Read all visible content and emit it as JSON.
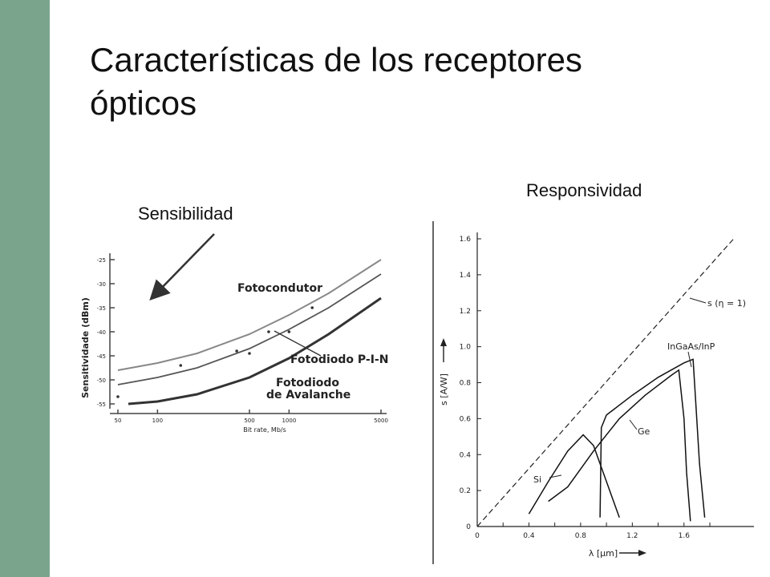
{
  "slide": {
    "title": "Características de los receptores\nópticos",
    "sensitivity_label": "Sensibilidad",
    "responsivity_label": "Responsividad",
    "colors": {
      "sidebar": "#7aa58c",
      "title": "#111111"
    }
  },
  "chart_data": [
    {
      "type": "line",
      "xscale": "log",
      "xlabel": "Bit rate, Mb/s",
      "ylabel": "Sensitividade (dBm)",
      "xlim": [
        50,
        5000
      ],
      "ylim": [
        -55,
        -25
      ],
      "x_ticks": [
        50,
        100,
        500,
        1000,
        5000
      ],
      "y_ticks": [
        -25,
        -30,
        -35,
        -40,
        -45,
        -50,
        -55
      ],
      "series": [
        {
          "name": "Fotocondutor",
          "x": [
            50,
            100,
            200,
            500,
            1000,
            2000,
            5000
          ],
          "y": [
            -48,
            -46.5,
            -44.5,
            -40.5,
            -36.5,
            -32,
            -25
          ]
        },
        {
          "name": "Fotodiodo P-I-N",
          "x": [
            50,
            100,
            200,
            500,
            1000,
            2000,
            5000
          ],
          "y": [
            -51,
            -49.5,
            -47.5,
            -43.5,
            -39.5,
            -35,
            -28
          ]
        },
        {
          "name": "Fotodiodo de Avalanche",
          "x": [
            60,
            100,
            200,
            500,
            1000,
            2000,
            5000
          ],
          "y": [
            -55,
            -54.5,
            -53,
            -49.5,
            -45.5,
            -40.5,
            -33
          ]
        }
      ],
      "points": {
        "x": [
          50,
          150,
          400,
          500,
          700,
          1000,
          1500
        ],
        "y": [
          -53.5,
          -47,
          -44,
          -44.5,
          -40,
          -40,
          -35
        ]
      },
      "annotations": [
        "Fotocondutor",
        "Fotodiodo P-I-N",
        "Fotodiodo",
        "de Avalanche"
      ]
    },
    {
      "type": "line",
      "xlabel": "λ [µm]",
      "ylabel": "s [A/W]",
      "xlim": [
        0,
        1.8
      ],
      "ylim": [
        0,
        1.6
      ],
      "x_ticks": [
        "0",
        "0.4",
        "0.8",
        "1.2",
        "1.6"
      ],
      "y_ticks": [
        "0",
        "0.2",
        "0.4",
        "0.6",
        "0.8",
        "1.0",
        "1.2",
        "1.4",
        "1.6"
      ],
      "ideal_label": "s (η = 1)",
      "series": [
        {
          "name": "Si",
          "x": [
            0.4,
            0.55,
            0.7,
            0.82,
            0.9,
            1.0,
            1.1
          ],
          "y": [
            0.07,
            0.25,
            0.42,
            0.51,
            0.45,
            0.25,
            0.05
          ]
        },
        {
          "name": "Ge",
          "x": [
            0.55,
            0.7,
            0.9,
            1.1,
            1.3,
            1.5,
            1.56,
            1.6,
            1.62,
            1.65
          ],
          "y": [
            0.14,
            0.22,
            0.42,
            0.6,
            0.73,
            0.84,
            0.87,
            0.6,
            0.3,
            0.03
          ]
        },
        {
          "name": "InGaAs/InP",
          "x": [
            0.95,
            0.96,
            1.0,
            1.2,
            1.4,
            1.6,
            1.67,
            1.69,
            1.72,
            1.76
          ],
          "y": [
            0.05,
            0.55,
            0.62,
            0.73,
            0.83,
            0.91,
            0.93,
            0.7,
            0.35,
            0.05
          ]
        }
      ]
    }
  ]
}
